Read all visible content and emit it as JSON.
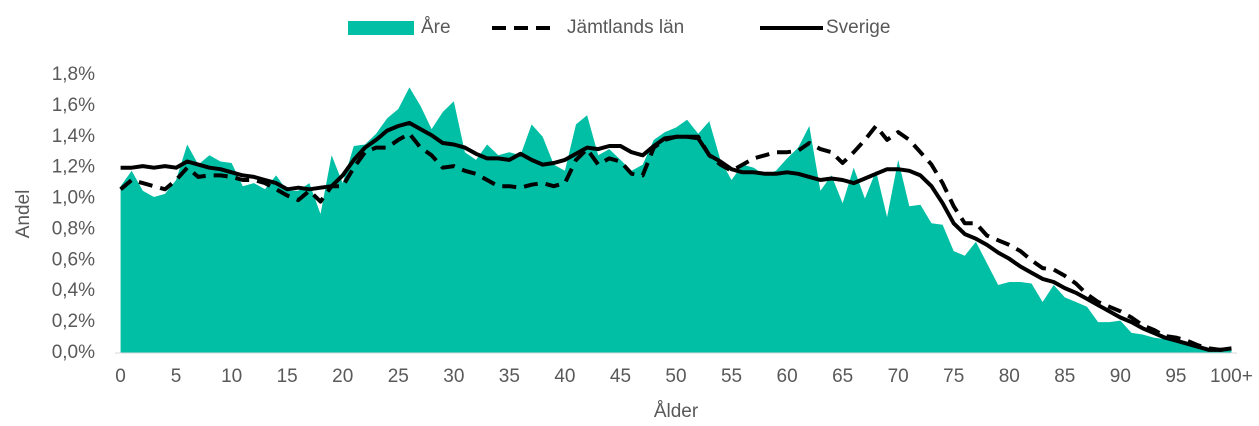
{
  "chart_data": {
    "type": "area-line",
    "x_label": "Ålder",
    "y_label": "Andel",
    "categories": [
      "0",
      null,
      null,
      null,
      null,
      "5",
      null,
      null,
      null,
      null,
      "10",
      null,
      null,
      null,
      null,
      "15",
      null,
      null,
      null,
      null,
      "20",
      null,
      null,
      null,
      null,
      "25",
      null,
      null,
      null,
      null,
      "30",
      null,
      null,
      null,
      null,
      "35",
      null,
      null,
      null,
      null,
      "40",
      null,
      null,
      null,
      null,
      "45",
      null,
      null,
      null,
      null,
      "50",
      null,
      null,
      null,
      null,
      "55",
      null,
      null,
      null,
      null,
      "60",
      null,
      null,
      null,
      null,
      "65",
      null,
      null,
      null,
      null,
      "70",
      null,
      null,
      null,
      null,
      "75",
      null,
      null,
      null,
      null,
      "80",
      null,
      null,
      null,
      null,
      "85",
      null,
      null,
      null,
      null,
      "90",
      null,
      null,
      null,
      null,
      "95",
      null,
      null,
      null,
      null,
      "100+"
    ],
    "ylim": [
      0,
      1.8
    ],
    "yticks": [
      {
        "value": 0,
        "label": "0,0%"
      },
      {
        "value": 0.2,
        "label": "0,2%"
      },
      {
        "value": 0.4,
        "label": "0,4%"
      },
      {
        "value": 0.6,
        "label": "0,6%"
      },
      {
        "value": 0.8,
        "label": "0,8%"
      },
      {
        "value": 1.0,
        "label": "1,0%"
      },
      {
        "value": 1.2,
        "label": "1,2%"
      },
      {
        "value": 1.4,
        "label": "1,4%"
      },
      {
        "value": 1.6,
        "label": "1,6%"
      },
      {
        "value": 1.8,
        "label": "1,8%"
      }
    ],
    "grid": false,
    "legend": "top",
    "series": [
      {
        "name": "Åre",
        "style": "area",
        "color": "#00bfa5",
        "values": [
          1.08,
          1.18,
          1.05,
          1.01,
          1.03,
          1.12,
          1.35,
          1.22,
          1.28,
          1.24,
          1.23,
          1.08,
          1.1,
          1.06,
          1.15,
          1.05,
          1.05,
          1.1,
          0.9,
          1.28,
          1.1,
          1.34,
          1.35,
          1.42,
          1.52,
          1.58,
          1.72,
          1.6,
          1.45,
          1.56,
          1.63,
          1.3,
          1.25,
          1.35,
          1.28,
          1.3,
          1.28,
          1.48,
          1.4,
          1.22,
          1.18,
          1.48,
          1.54,
          1.28,
          1.32,
          1.25,
          1.18,
          1.22,
          1.38,
          1.43,
          1.46,
          1.51,
          1.42,
          1.5,
          1.25,
          1.12,
          1.22,
          1.2,
          1.15,
          1.18,
          1.26,
          1.33,
          1.47,
          1.05,
          1.15,
          0.97,
          1.2,
          1.0,
          1.18,
          0.88,
          1.25,
          0.95,
          0.96,
          0.84,
          0.83,
          0.66,
          0.63,
          0.72,
          0.58,
          0.44,
          0.46,
          0.46,
          0.45,
          0.33,
          0.44,
          0.36,
          0.33,
          0.3,
          0.2,
          0.2,
          0.21,
          0.13,
          0.12,
          0.1,
          0.09,
          0.07,
          0.05,
          0.04,
          0.02,
          0.02,
          0.03
        ]
      },
      {
        "name": "Jämtlands län",
        "style": "dashed",
        "color": "#000000",
        "values": [
          1.06,
          1.12,
          1.1,
          1.08,
          1.06,
          1.12,
          1.2,
          1.14,
          1.15,
          1.15,
          1.14,
          1.12,
          1.12,
          1.1,
          1.06,
          1.02,
          0.99,
          1.05,
          0.98,
          1.08,
          1.08,
          1.2,
          1.3,
          1.33,
          1.33,
          1.38,
          1.42,
          1.33,
          1.28,
          1.2,
          1.21,
          1.18,
          1.16,
          1.12,
          1.08,
          1.08,
          1.07,
          1.09,
          1.1,
          1.08,
          1.1,
          1.25,
          1.32,
          1.22,
          1.26,
          1.24,
          1.16,
          1.15,
          1.33,
          1.38,
          1.4,
          1.4,
          1.4,
          1.28,
          1.22,
          1.18,
          1.22,
          1.26,
          1.28,
          1.3,
          1.3,
          1.31,
          1.36,
          1.32,
          1.3,
          1.23,
          1.3,
          1.38,
          1.47,
          1.38,
          1.43,
          1.38,
          1.3,
          1.22,
          1.1,
          0.95,
          0.84,
          0.84,
          0.76,
          0.73,
          0.7,
          0.66,
          0.6,
          0.55,
          0.54,
          0.5,
          0.45,
          0.38,
          0.33,
          0.3,
          0.27,
          0.23,
          0.18,
          0.15,
          0.11,
          0.1,
          0.08,
          0.05,
          0.03,
          0.02,
          0.03
        ]
      },
      {
        "name": "Sverige",
        "style": "solid",
        "color": "#000000",
        "values": [
          1.2,
          1.2,
          1.21,
          1.2,
          1.21,
          1.2,
          1.24,
          1.22,
          1.2,
          1.19,
          1.17,
          1.15,
          1.14,
          1.12,
          1.1,
          1.06,
          1.07,
          1.06,
          1.07,
          1.08,
          1.15,
          1.25,
          1.33,
          1.38,
          1.44,
          1.47,
          1.49,
          1.45,
          1.41,
          1.36,
          1.35,
          1.33,
          1.29,
          1.26,
          1.26,
          1.25,
          1.29,
          1.25,
          1.22,
          1.23,
          1.25,
          1.29,
          1.33,
          1.32,
          1.34,
          1.34,
          1.3,
          1.28,
          1.34,
          1.39,
          1.4,
          1.4,
          1.39,
          1.28,
          1.24,
          1.19,
          1.17,
          1.17,
          1.16,
          1.16,
          1.17,
          1.16,
          1.14,
          1.12,
          1.13,
          1.12,
          1.1,
          1.13,
          1.16,
          1.19,
          1.19,
          1.18,
          1.15,
          1.08,
          0.97,
          0.84,
          0.77,
          0.74,
          0.7,
          0.65,
          0.61,
          0.56,
          0.52,
          0.48,
          0.46,
          0.42,
          0.39,
          0.35,
          0.31,
          0.27,
          0.23,
          0.2,
          0.16,
          0.13,
          0.1,
          0.08,
          0.06,
          0.04,
          0.02,
          0.02,
          0.03
        ]
      }
    ]
  }
}
